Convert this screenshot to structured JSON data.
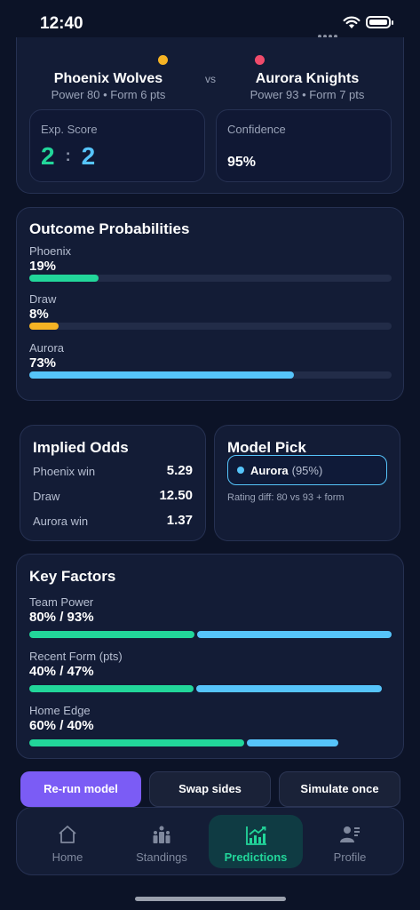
{
  "status": {
    "time": "12:40"
  },
  "match": {
    "home": {
      "name": "Phoenix Wolves",
      "meta": "Power 80 • Form 6 pts",
      "color": "#f5b324"
    },
    "vs": "vs",
    "away": {
      "name": "Aurora Knights",
      "meta": "Power 93 • Form 7 pts",
      "color": "#f04b6b"
    },
    "exp_label": "Exp. Score",
    "exp_home": "2",
    "exp_sep": ":",
    "exp_away": "2",
    "conf_label": "Confidence",
    "conf_value": "95%"
  },
  "outcome": {
    "title": "Outcome Probabilities",
    "rows": [
      {
        "label": "Phoenix",
        "value": "19%",
        "fraction": 0.19,
        "color": "#22d69a"
      },
      {
        "label": "Draw",
        "value": "8%",
        "fraction": 0.08,
        "color": "#f5b324"
      },
      {
        "label": "Aurora",
        "value": "73%",
        "fraction": 0.73,
        "color": "#56c4fa"
      }
    ]
  },
  "odds": {
    "title": "Implied Odds",
    "rows": [
      {
        "label": "Phoenix win",
        "value": "5.29"
      },
      {
        "label": "Draw",
        "value": "12.50"
      },
      {
        "label": "Aurora win",
        "value": "1.37"
      }
    ]
  },
  "pick": {
    "title": "Model Pick",
    "team": "Aurora",
    "pct": "(95%)",
    "note": "Rating diff: 80 vs 93 + form"
  },
  "factors": {
    "title": "Key Factors",
    "rows": [
      {
        "label": "Team Power",
        "value": "80% / 93%",
        "home": 0.8,
        "away": 0.93
      },
      {
        "label": "Recent Form (pts)",
        "value": "40% / 47%",
        "home": 0.4,
        "away": 0.47
      },
      {
        "label": "Home Edge",
        "value": "60% / 40%",
        "home": 0.6,
        "away": 0.4
      }
    ]
  },
  "actions": {
    "rerun": "Re-run model",
    "swap": "Swap sides",
    "simulate": "Simulate once"
  },
  "tabs": [
    {
      "label": "Home",
      "icon": "home-icon"
    },
    {
      "label": "Standings",
      "icon": "standings-icon"
    },
    {
      "label": "Predictions",
      "icon": "predictions-icon"
    },
    {
      "label": "Profile",
      "icon": "profile-icon"
    }
  ],
  "colors": {
    "home": "#22d69a",
    "away": "#56c4fa",
    "accent": "#7b5cf5"
  }
}
